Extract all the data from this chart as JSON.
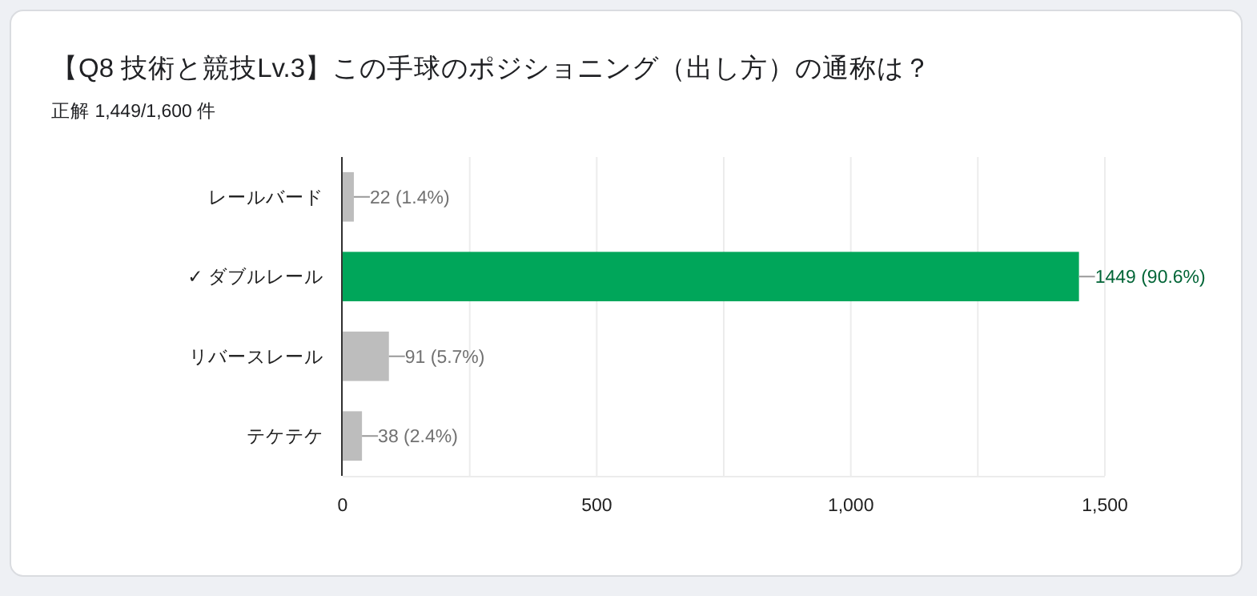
{
  "chart_data": {
    "type": "bar",
    "orientation": "horizontal",
    "title": "【Q8 技術と競技Lv.3】この手球のポジショニング（出し方）の通称は？",
    "subtitle": "正解 1,449/1,600 件",
    "categories": [
      "レールバード",
      "✓ ダブルレール",
      "リバースレール",
      "テケテケ"
    ],
    "values": [
      22,
      1449,
      91,
      38
    ],
    "colors": [
      "#bdbdbd",
      "#00a65a",
      "#bdbdbd",
      "#bdbdbd"
    ],
    "value_labels": [
      "22 (1.4%)",
      "1449 (90.6%)",
      "91 (5.7%)",
      "38 (2.4%)"
    ],
    "xlim": [
      0,
      1500
    ],
    "xticks": [
      0,
      {
        "value": 250,
        "label": null
      },
      500,
      {
        "value": 750,
        "label": null
      },
      {
        "value": 1000,
        "label": "1,000"
      },
      {
        "value": 1250,
        "label": null
      },
      {
        "value": 1500,
        "label": "1,500"
      }
    ],
    "grid": "x"
  }
}
